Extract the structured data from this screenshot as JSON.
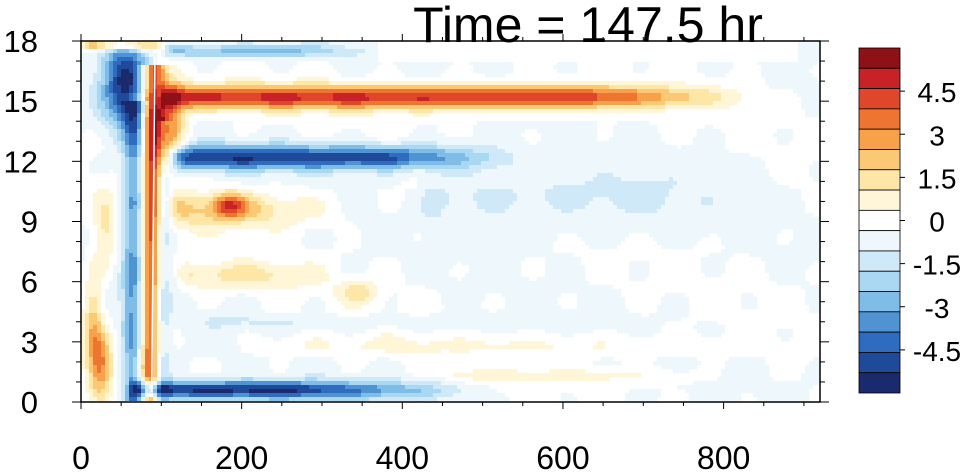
{
  "chart_data": {
    "type": "heatmap",
    "title": "Time = 147.5 hr",
    "xlabel": "",
    "ylabel": "",
    "xlim": [
      0,
      920
    ],
    "ylim": [
      0,
      18
    ],
    "x_ticks": [
      0,
      200,
      400,
      600,
      800
    ],
    "x_tick_labels": [
      "0",
      "200",
      "400",
      "600",
      "800"
    ],
    "y_ticks": [
      0,
      3,
      6,
      9,
      12,
      15,
      18
    ],
    "y_tick_labels": [
      "0",
      "3",
      "6",
      "9",
      "12",
      "15",
      "18"
    ],
    "colorbar": {
      "min": -6,
      "max": 6,
      "levels": [
        -6,
        -5.25,
        -4.5,
        -3.75,
        -3,
        -2.25,
        -1.5,
        -0.75,
        0,
        0.75,
        1.5,
        2.25,
        3,
        3.75,
        4.5,
        5.25,
        6
      ],
      "tick_values": [
        4.5,
        3,
        1.5,
        0,
        -1.5,
        -3,
        -4.5
      ],
      "tick_labels": [
        "4.5",
        "3",
        "1.5",
        "0",
        "-1.5",
        "-3",
        "-4.5"
      ],
      "colors": [
        "#1a2a6c",
        "#1f4a9a",
        "#2f6cbf",
        "#4f93d2",
        "#7fbde8",
        "#a8d8f2",
        "#cfe9f8",
        "#eef7fc",
        "#ffffff",
        "#fff6d8",
        "#fde6a6",
        "#fbc874",
        "#f7a14a",
        "#ee7531",
        "#e0472a",
        "#c72226",
        "#8e1118"
      ]
    },
    "features": [
      {
        "kind": "band",
        "x0": 100,
        "x1": 950,
        "y": 15.2,
        "half_width": 0.6,
        "value": 5.2,
        "fade_start": 620,
        "fade_end": 860
      },
      {
        "kind": "band",
        "x0": 110,
        "x1": 560,
        "y": 12.2,
        "half_width": 0.6,
        "value": -5.0,
        "fade_start": 380,
        "fade_end": 560
      },
      {
        "kind": "band",
        "x0": 60,
        "x1": 520,
        "y": 0.6,
        "half_width": 0.45,
        "value": -5.5,
        "fade_start": 250,
        "fade_end": 520
      },
      {
        "kind": "band",
        "x0": 100,
        "x1": 380,
        "y": 17.5,
        "half_width": 0.35,
        "value": -2.5,
        "fade_start": 260,
        "fade_end": 380
      },
      {
        "kind": "band",
        "x0": 0,
        "x1": 110,
        "y": 17.8,
        "half_width": 0.25,
        "value": 3.5,
        "fade_start": 80,
        "fade_end": 110
      },
      {
        "kind": "band",
        "x0": 110,
        "x1": 350,
        "y": 9.6,
        "half_width": 0.9,
        "value": 2.2,
        "fade_start": 220,
        "fade_end": 350
      },
      {
        "kind": "band",
        "x0": 120,
        "x1": 330,
        "y": 6.3,
        "half_width": 0.7,
        "value": 1.6,
        "fade_start": 230,
        "fade_end": 330
      },
      {
        "kind": "band",
        "x0": 200,
        "x1": 900,
        "y": 2.8,
        "half_width": 0.5,
        "value": 0.8,
        "fade_start": 650,
        "fade_end": 900
      },
      {
        "kind": "band",
        "x0": 450,
        "x1": 800,
        "y": 1.3,
        "half_width": 0.4,
        "value": 1.0,
        "fade_start": 650,
        "fade_end": 800
      },
      {
        "kind": "band",
        "x0": 420,
        "x1": 880,
        "y": 10.2,
        "half_width": 1.6,
        "value": -0.9,
        "fade_start": 700,
        "fade_end": 880
      },
      {
        "kind": "band",
        "x0": 150,
        "x1": 700,
        "y": 4.0,
        "half_width": 0.35,
        "value": -0.7,
        "fade_start": 500,
        "fade_end": 700
      },
      {
        "kind": "diag",
        "x_at_y0": 85,
        "x_at_y18": 90,
        "y0": 0,
        "y1": 16.8,
        "half_width": 14,
        "value": 5.0
      },
      {
        "kind": "diag",
        "x_at_y0": 65,
        "x_at_y18": 68,
        "y0": 0,
        "y1": 15,
        "half_width": 14,
        "value": -3.5
      },
      {
        "kind": "diag",
        "x_at_y0": 100,
        "x_at_y18": 102,
        "y0": 0,
        "y1": 14,
        "half_width": 10,
        "value": -2.0
      },
      {
        "kind": "blob",
        "x": 55,
        "y": 16,
        "rx": 28,
        "ry": 2.2,
        "value": -5.5
      },
      {
        "kind": "blob",
        "x": 105,
        "y": 13.8,
        "rx": 22,
        "ry": 2.0,
        "value": 4.5
      },
      {
        "kind": "blob",
        "x": 15,
        "y": 4.0,
        "rx": 12,
        "ry": 2.5,
        "value": 2.5
      },
      {
        "kind": "blob",
        "x": 25,
        "y": 1.8,
        "rx": 14,
        "ry": 1.5,
        "value": 3.5
      },
      {
        "kind": "blob",
        "x": 30,
        "y": 8.5,
        "rx": 14,
        "ry": 1.8,
        "value": 1.8
      },
      {
        "kind": "blob",
        "x": 345,
        "y": 5.5,
        "rx": 25,
        "ry": 0.6,
        "value": 1.8
      },
      {
        "kind": "blob",
        "x": 185,
        "y": 9.8,
        "rx": 20,
        "ry": 0.6,
        "value": 3.5
      }
    ]
  }
}
